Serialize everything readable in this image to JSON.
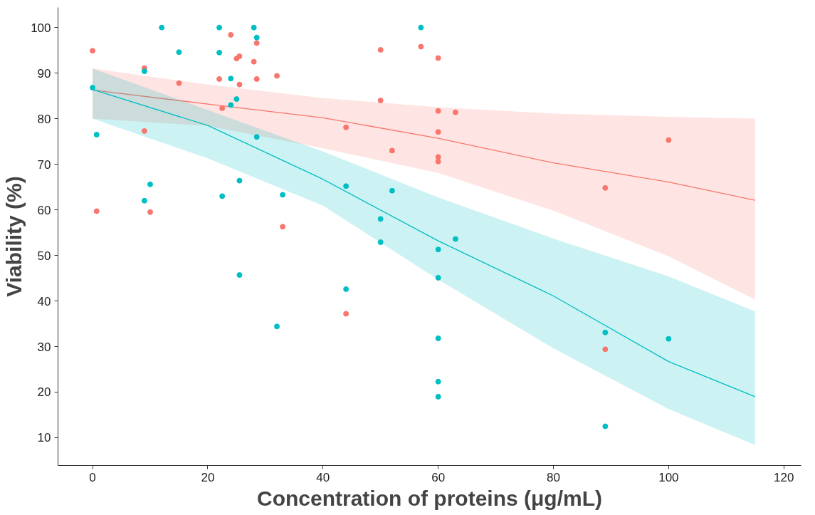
{
  "chart_data": {
    "type": "scatter",
    "xlabel": "Concentration of proteins (μg/mL)",
    "ylabel": "Viability (%)",
    "xlim": [
      -6,
      123
    ],
    "ylim": [
      3.9,
      104.4
    ],
    "xticks": [
      0,
      20,
      40,
      60,
      80,
      100,
      120
    ],
    "yticks": [
      10,
      20,
      30,
      40,
      50,
      60,
      70,
      80,
      90,
      100
    ],
    "grid": false,
    "series": [
      {
        "marker": "circle",
        "color": "#f8766d",
        "x": [
          0,
          0.7,
          9,
          9,
          10,
          15,
          22,
          22.5,
          24,
          25,
          25.5,
          25.5,
          28,
          28.5,
          28.5,
          32,
          33,
          44,
          44,
          50,
          50,
          52,
          57,
          60,
          60,
          60,
          60,
          60,
          63,
          89,
          89,
          100
        ],
        "values": [
          94.9,
          59.7,
          91.1,
          77.3,
          59.5,
          87.8,
          88.7,
          82.3,
          98.4,
          93.2,
          93.7,
          87.5,
          92.5,
          96.6,
          88.7,
          89.4,
          56.3,
          78.1,
          37.2,
          95.1,
          84.0,
          73.0,
          95.8,
          93.3,
          81.7,
          77.1,
          71.6,
          70.6,
          81.4,
          64.8,
          29.4,
          75.3
        ]
      },
      {
        "marker": "circle",
        "color": "#00bfc4",
        "x": [
          0,
          0.7,
          9,
          9,
          10,
          12,
          15,
          22,
          22,
          22.5,
          24,
          24,
          25,
          25.5,
          25.5,
          28,
          28.5,
          28.5,
          32,
          33,
          44,
          44,
          50,
          50,
          52,
          57,
          60,
          60,
          60,
          60,
          60,
          63,
          89,
          89,
          100
        ],
        "values": [
          86.8,
          76.5,
          90.4,
          62.0,
          65.6,
          100,
          94.6,
          100,
          94.5,
          63.0,
          88.8,
          83.0,
          84.3,
          66.4,
          45.7,
          100,
          97.8,
          76.0,
          34.4,
          63.3,
          65.2,
          42.6,
          58.0,
          52.9,
          64.2,
          100,
          51.3,
          45.1,
          31.8,
          22.3,
          19.0,
          53.6,
          33.1,
          12.5,
          31.7
        ]
      },
      {
        "type": "line",
        "marker": "none",
        "color": "#f8766d",
        "line_style": "solid",
        "x": [
          0,
          20,
          40,
          60,
          80,
          100,
          115
        ],
        "values": [
          86.3,
          83.2,
          80.2,
          75.7,
          70.3,
          66.1,
          62.1
        ],
        "lower": [
          80,
          78.4,
          73.5,
          68.1,
          59.8,
          49.8,
          40.3
        ],
        "upper": [
          91,
          87.5,
          84.5,
          82.5,
          81.1,
          80.4,
          80
        ]
      },
      {
        "type": "line",
        "marker": "none",
        "color": "#00bfc4",
        "line_style": "solid",
        "x": [
          0,
          20,
          40,
          60,
          80,
          100,
          115
        ],
        "values": [
          86.4,
          78.5,
          66.7,
          53.2,
          41.1,
          26.7,
          19.0
        ],
        "lower": [
          80,
          71.3,
          60.9,
          44.7,
          29.6,
          16.3,
          8.4
        ],
        "upper": [
          91,
          81.9,
          72.8,
          62.7,
          53.7,
          45.4,
          37.7
        ]
      }
    ]
  }
}
